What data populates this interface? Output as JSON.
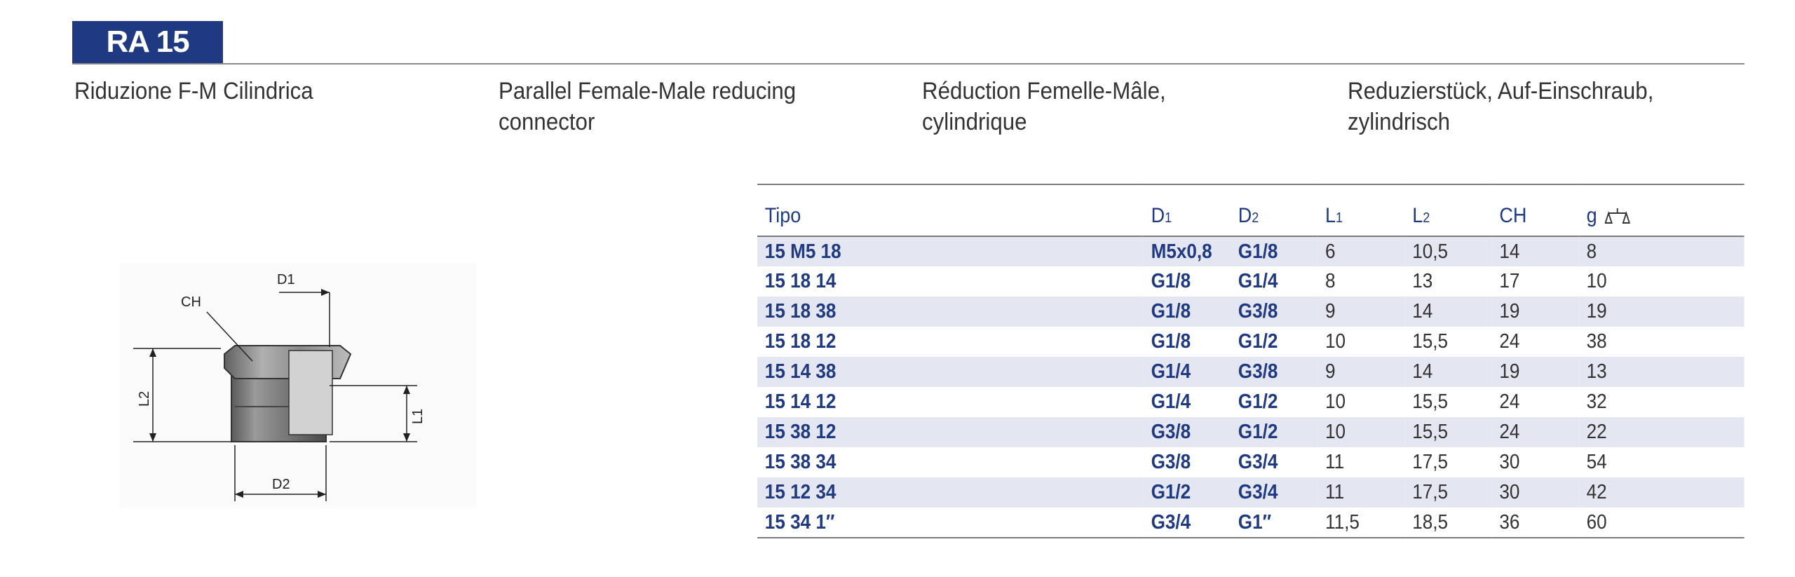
{
  "header": {
    "code": "RA 15"
  },
  "descriptions": [
    {
      "lang": "it",
      "text": "Riduzione F-M Cilindrica"
    },
    {
      "lang": "en",
      "text": "Parallel Female-Male reducing\nconnector"
    },
    {
      "lang": "fr",
      "text": "Réduction Femelle-Mâle,\ncylindrique"
    },
    {
      "lang": "de",
      "text": "Reduzierstück, Auf-Einschraub,\nzylindrisch"
    }
  ],
  "drawing": {
    "label_ch": "CH",
    "label_d1": "D1",
    "label_d2": "D2",
    "label_l1": "L1",
    "label_l2": "L2"
  },
  "table": {
    "columns": {
      "tipo": "Tipo",
      "d1_main": "D",
      "d1_sub": "1",
      "d2_main": "D",
      "d2_sub": "2",
      "l1_main": "L",
      "l1_sub": "1",
      "l2_main": "L",
      "l2_sub": "2",
      "ch": "CH",
      "g": "g",
      "g_icon": "scale-icon"
    },
    "rows": [
      {
        "tipo": "15 M5 18",
        "d1": "M5x0,8",
        "d2": "G1/8",
        "l1": "6",
        "l2": "10,5",
        "ch": "14",
        "g": "8"
      },
      {
        "tipo": "15 18 14",
        "d1": "G1/8",
        "d2": "G1/4",
        "l1": "8",
        "l2": "13",
        "ch": "17",
        "g": "10"
      },
      {
        "tipo": "15 18 38",
        "d1": "G1/8",
        "d2": "G3/8",
        "l1": "9",
        "l2": "14",
        "ch": "19",
        "g": "19"
      },
      {
        "tipo": "15 18 12",
        "d1": "G1/8",
        "d2": "G1/2",
        "l1": "10",
        "l2": "15,5",
        "ch": "24",
        "g": "38"
      },
      {
        "tipo": "15 14 38",
        "d1": "G1/4",
        "d2": "G3/8",
        "l1": "9",
        "l2": "14",
        "ch": "19",
        "g": "13"
      },
      {
        "tipo": "15 14 12",
        "d1": "G1/4",
        "d2": "G1/2",
        "l1": "10",
        "l2": "15,5",
        "ch": "24",
        "g": "32"
      },
      {
        "tipo": "15 38 12",
        "d1": "G3/8",
        "d2": "G1/2",
        "l1": "10",
        "l2": "15,5",
        "ch": "24",
        "g": "22"
      },
      {
        "tipo": "15 38 34",
        "d1": "G3/8",
        "d2": "G3/4",
        "l1": "11",
        "l2": "17,5",
        "ch": "30",
        "g": "54"
      },
      {
        "tipo": "15 12 34",
        "d1": "G1/2",
        "d2": "G3/4",
        "l1": "11",
        "l2": "17,5",
        "ch": "30",
        "g": "42"
      },
      {
        "tipo": "15 34 1″",
        "d1": "G3/4",
        "d2": "G1″",
        "l1": "11,5",
        "l2": "18,5",
        "ch": "36",
        "g": "60"
      }
    ]
  },
  "colors": {
    "brand": "#1f3a82",
    "stripe": "#e4e6f2",
    "rule": "#7a7a7a"
  }
}
